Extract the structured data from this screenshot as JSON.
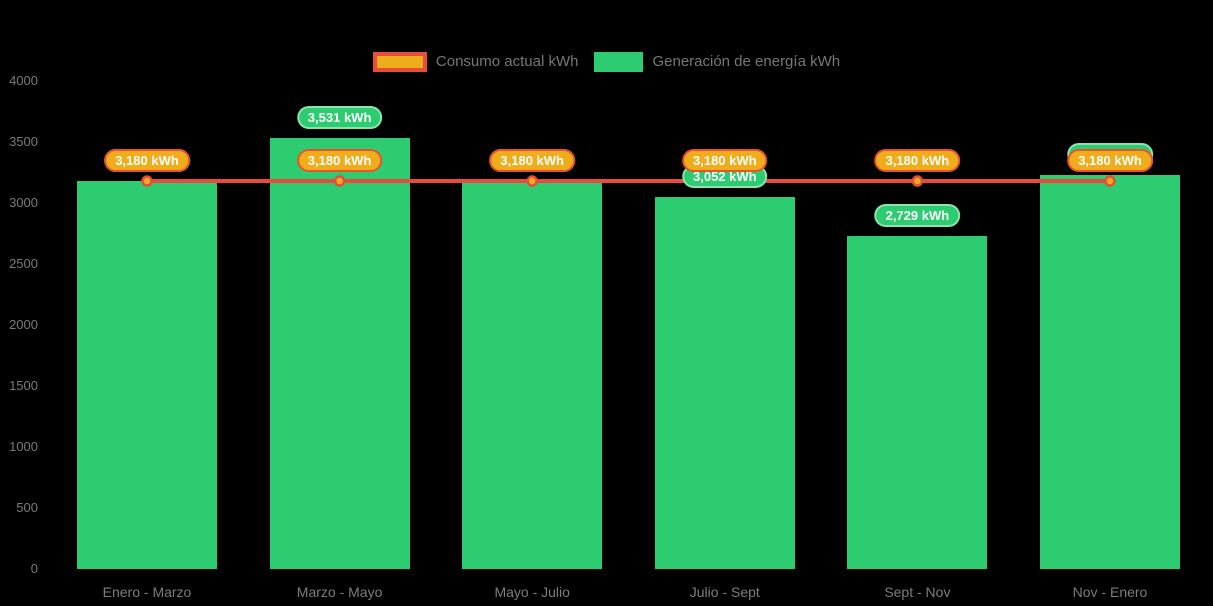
{
  "legend": {
    "items": [
      {
        "label": "Consumo actual kWh",
        "swatch": "line-swatch-red-yellow"
      },
      {
        "label": "Generación de energía kWh",
        "swatch": "bar-swatch-green"
      }
    ]
  },
  "colors": {
    "background": "#000000",
    "bar_green": "#2ecc71",
    "line_red": "#e74c3c",
    "marker_fill": "#f0ad1b",
    "pill_orange_fill": "#f0ad1b",
    "pill_orange_border": "#e8532e",
    "pill_green_fill": "#2ecc71",
    "axis_text": "#7a7a7a",
    "pill_text": "#ffffff"
  },
  "chart_data": {
    "type": "bar",
    "categories": [
      "Enero - Marzo",
      "Marzo - Mayo",
      "Mayo - Julio",
      "Julio - Sept",
      "Sept - Nov",
      "Nov - Enero"
    ],
    "series": [
      {
        "name": "Consumo actual kWh",
        "type": "line",
        "color": "#e74c3c",
        "values": [
          3180,
          3180,
          3180,
          3180,
          3180,
          3180
        ],
        "labels": [
          "3,180 kWh",
          "3,180 kWh",
          "3,180 kWh",
          "3,180 kWh",
          "3,180 kWh",
          "3,180 kWh"
        ]
      },
      {
        "name": "Generación de energía kWh",
        "type": "bar",
        "color": "#2ecc71",
        "values": [
          3180,
          3531,
          3180,
          3052,
          2729,
          3228
        ],
        "labels": [
          "3,180 kWh",
          "3,531 kWh",
          "3,180 kWh",
          "3,052 kWh",
          "2,729 kWh",
          "3,228 kWh"
        ]
      }
    ],
    "title": "",
    "xlabel": "",
    "ylabel": "",
    "ylim": [
      0,
      4000
    ],
    "yticks": [
      0,
      500,
      1000,
      1500,
      2000,
      2500,
      3000,
      3500,
      4000
    ],
    "grid": false,
    "legend_position": "top-center"
  }
}
